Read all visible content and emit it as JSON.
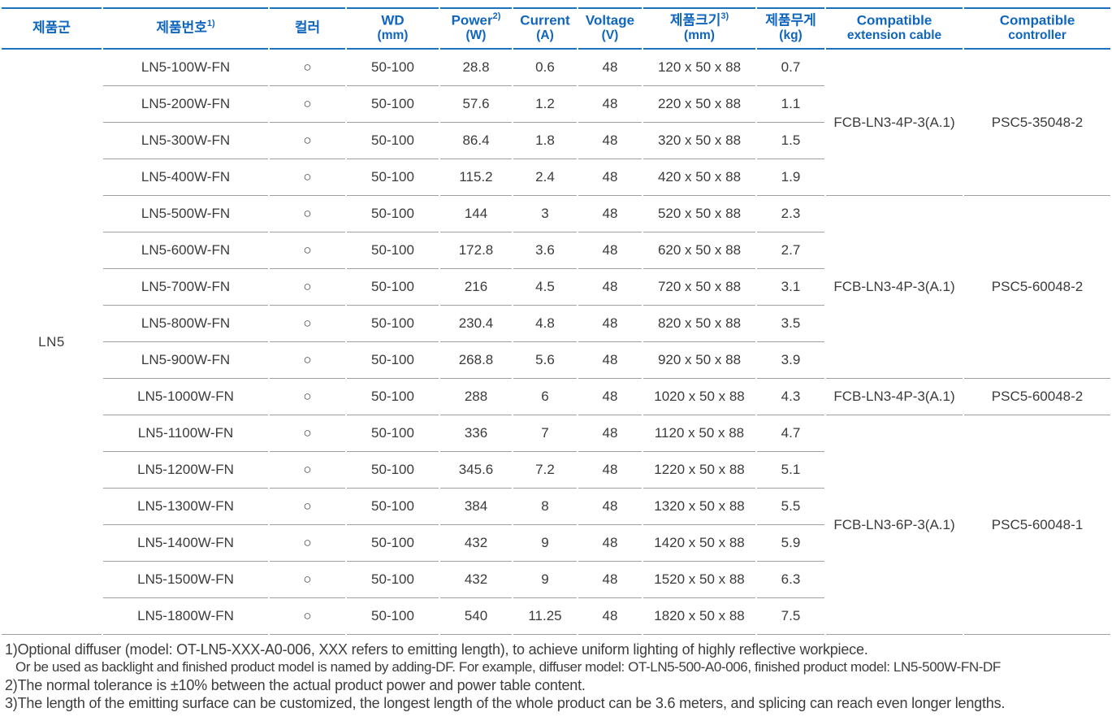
{
  "colors": {
    "header_text": "#1065bd",
    "header_border": "#1d72bf",
    "row_line": "#a0a0a0",
    "body_text": "#3b3b3b"
  },
  "table": {
    "product_group": "LN5",
    "headers": [
      {
        "id": "product-group",
        "label": "제품군",
        "sup": "",
        "sub": ""
      },
      {
        "id": "model-number",
        "label": "제품번호",
        "sup": "1)",
        "sub": ""
      },
      {
        "id": "color",
        "label": "컬러",
        "sup": "",
        "sub": ""
      },
      {
        "id": "wd",
        "label": "WD",
        "sup": "",
        "sub": "(mm)"
      },
      {
        "id": "power",
        "label": "Power",
        "sup": "2)",
        "sub": "(W)"
      },
      {
        "id": "current",
        "label": "Current",
        "sup": "",
        "sub": "(A)"
      },
      {
        "id": "voltage",
        "label": "Voltage",
        "sup": "",
        "sub": "(V)"
      },
      {
        "id": "size",
        "label": "제품크기",
        "sup": "3)",
        "sub": "(mm)"
      },
      {
        "id": "weight",
        "label": "제품무게",
        "sup": "",
        "sub": "(kg)"
      },
      {
        "id": "cable",
        "label": "Compatible",
        "sup": "",
        "sub": "extension cable"
      },
      {
        "id": "controller",
        "label": "Compatible",
        "sup": "",
        "sub": "controller"
      }
    ],
    "rows": [
      {
        "model": "LN5-100W-FN",
        "color": "○",
        "wd": "50-100",
        "power": "28.8",
        "current": "0.6",
        "voltage": "48",
        "size": "120 x 50 x 88",
        "weight": "0.7"
      },
      {
        "model": "LN5-200W-FN",
        "color": "○",
        "wd": "50-100",
        "power": "57.6",
        "current": "1.2",
        "voltage": "48",
        "size": "220 x 50 x 88",
        "weight": "1.1"
      },
      {
        "model": "LN5-300W-FN",
        "color": "○",
        "wd": "50-100",
        "power": "86.4",
        "current": "1.8",
        "voltage": "48",
        "size": "320 x 50 x 88",
        "weight": "1.5"
      },
      {
        "model": "LN5-400W-FN",
        "color": "○",
        "wd": "50-100",
        "power": "115.2",
        "current": "2.4",
        "voltage": "48",
        "size": "420 x 50 x 88",
        "weight": "1.9"
      },
      {
        "model": "LN5-500W-FN",
        "color": "○",
        "wd": "50-100",
        "power": "144",
        "current": "3",
        "voltage": "48",
        "size": "520 x 50 x 88",
        "weight": "2.3"
      },
      {
        "model": "LN5-600W-FN",
        "color": "○",
        "wd": "50-100",
        "power": "172.8",
        "current": "3.6",
        "voltage": "48",
        "size": "620 x 50 x 88",
        "weight": "2.7"
      },
      {
        "model": "LN5-700W-FN",
        "color": "○",
        "wd": "50-100",
        "power": "216",
        "current": "4.5",
        "voltage": "48",
        "size": "720 x 50 x 88",
        "weight": "3.1"
      },
      {
        "model": "LN5-800W-FN",
        "color": "○",
        "wd": "50-100",
        "power": "230.4",
        "current": "4.8",
        "voltage": "48",
        "size": "820 x 50 x 88",
        "weight": "3.5"
      },
      {
        "model": "LN5-900W-FN",
        "color": "○",
        "wd": "50-100",
        "power": "268.8",
        "current": "5.6",
        "voltage": "48",
        "size": "920 x 50 x 88",
        "weight": "3.9"
      },
      {
        "model": "LN5-1000W-FN",
        "color": "○",
        "wd": "50-100",
        "power": "288",
        "current": "6",
        "voltage": "48",
        "size": "1020 x 50 x 88",
        "weight": "4.3"
      },
      {
        "model": "LN5-1100W-FN",
        "color": "○",
        "wd": "50-100",
        "power": "336",
        "current": "7",
        "voltage": "48",
        "size": "1120 x 50 x 88",
        "weight": "4.7"
      },
      {
        "model": "LN5-1200W-FN",
        "color": "○",
        "wd": "50-100",
        "power": "345.6",
        "current": "7.2",
        "voltage": "48",
        "size": "1220 x 50 x 88",
        "weight": "5.1"
      },
      {
        "model": "LN5-1300W-FN",
        "color": "○",
        "wd": "50-100",
        "power": "384",
        "current": "8",
        "voltage": "48",
        "size": "1320 x 50 x 88",
        "weight": "5.5"
      },
      {
        "model": "LN5-1400W-FN",
        "color": "○",
        "wd": "50-100",
        "power": "432",
        "current": "9",
        "voltage": "48",
        "size": "1420 x 50 x 88",
        "weight": "5.9"
      },
      {
        "model": "LN5-1500W-FN",
        "color": "○",
        "wd": "50-100",
        "power": "432",
        "current": "9",
        "voltage": "48",
        "size": "1520 x 50 x 88",
        "weight": "6.3"
      },
      {
        "model": "LN5-1800W-FN",
        "color": "○",
        "wd": "50-100",
        "power": "540",
        "current": "11.25",
        "voltage": "48",
        "size": "1820 x 50 x 88",
        "weight": "7.5"
      }
    ],
    "groups": [
      {
        "start": 0,
        "span": 4,
        "cable": "FCB-LN3-4P-3(A.1)",
        "controller": "PSC5-35048-2"
      },
      {
        "start": 4,
        "span": 5,
        "cable": "FCB-LN3-4P-3(A.1)",
        "controller": "PSC5-60048-2"
      },
      {
        "start": 9,
        "span": 1,
        "cable": "FCB-LN3-4P-3(A.1)",
        "controller": "PSC5-60048-2"
      },
      {
        "start": 10,
        "span": 6,
        "cable": "FCB-LN3-6P-3(A.1)",
        "controller": "PSC5-60048-1"
      }
    ]
  },
  "footnotes": [
    "1)Optional diffuser (model: OT-LN5-XXX-A0-006, XXX refers to emitting length), to achieve uniform lighting of highly reflective workpiece.",
    "Or be used as backlight and finished product model is named by adding-DF. For example, diffuser model: OT-LN5-500-A0-006, finished product model: LN5-500W-FN-DF",
    "2)The normal tolerance is ±10% between the actual product power and power table content.",
    "3)The length of the emitting surface can be customized, the longest length of the whole product can be 3.6 meters, and splicing can reach even longer lengths."
  ]
}
